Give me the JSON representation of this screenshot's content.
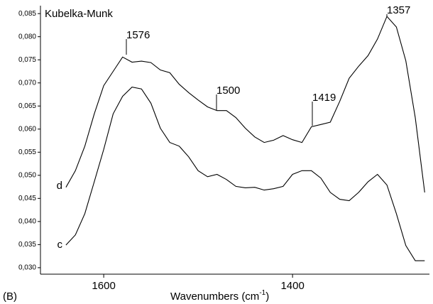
{
  "chart_data": {
    "type": "line",
    "panel_label": "(B)",
    "y_label": "Kubelka-Munk",
    "x_label": {
      "text": "Wavenumbers (cm",
      "superscript": "-1",
      "suffix": ")"
    },
    "x": [
      1640,
      1630,
      1620,
      1610,
      1600,
      1590,
      1580,
      1570,
      1560,
      1550,
      1540,
      1530,
      1520,
      1510,
      1500,
      1490,
      1480,
      1470,
      1460,
      1450,
      1440,
      1430,
      1420,
      1410,
      1400,
      1390,
      1380,
      1370,
      1360,
      1350,
      1340,
      1330,
      1320,
      1310,
      1300,
      1290,
      1280,
      1270,
      1260
    ],
    "series": [
      {
        "name": "d",
        "color": "#000000",
        "values": [
          0.0474,
          0.051,
          0.0563,
          0.0633,
          0.0694,
          0.0725,
          0.0756,
          0.0745,
          0.0747,
          0.0744,
          0.0728,
          0.0722,
          0.0697,
          0.0679,
          0.0663,
          0.0648,
          0.064,
          0.064,
          0.0625,
          0.0602,
          0.0583,
          0.0571,
          0.0576,
          0.0586,
          0.0577,
          0.0571,
          0.0605,
          0.061,
          0.0615,
          0.066,
          0.071,
          0.0736,
          0.0759,
          0.0795,
          0.0844,
          0.0821,
          0.0748,
          0.0625,
          0.0463
        ]
      },
      {
        "name": "c",
        "color": "#000000",
        "values": [
          0.0349,
          0.0371,
          0.0417,
          0.0486,
          0.0556,
          0.0633,
          0.0671,
          0.0691,
          0.0687,
          0.0656,
          0.0602,
          0.0571,
          0.0563,
          0.054,
          0.051,
          0.0497,
          0.0502,
          0.0491,
          0.0476,
          0.0473,
          0.0474,
          0.0468,
          0.0471,
          0.0476,
          0.0502,
          0.051,
          0.051,
          0.0494,
          0.0463,
          0.0448,
          0.0445,
          0.0463,
          0.0486,
          0.0502,
          0.0479,
          0.0417,
          0.0348,
          0.0315,
          0.0315
        ]
      }
    ],
    "annotations": [
      {
        "label": "1576"
      },
      {
        "label": "1500"
      },
      {
        "label": "1419"
      },
      {
        "label": "1357"
      }
    ],
    "xlim": [
      1667,
      1255
    ],
    "xticks": [
      1600,
      1400
    ],
    "ylim": [
      0.0286,
      0.0861
    ],
    "yticks": [
      {
        "value": 0.03,
        "label": "0,030"
      },
      {
        "value": 0.035,
        "label": "0,035"
      },
      {
        "value": 0.04,
        "label": "0,040"
      },
      {
        "value": 0.045,
        "label": "0,045"
      },
      {
        "value": 0.05,
        "label": "0,050"
      },
      {
        "value": 0.055,
        "label": "0,055"
      },
      {
        "value": 0.06,
        "label": "0,060"
      },
      {
        "value": 0.065,
        "label": "0,065"
      },
      {
        "value": 0.07,
        "label": "0,070"
      },
      {
        "value": 0.075,
        "label": "0,075"
      },
      {
        "value": 0.08,
        "label": "0,080"
      },
      {
        "value": 0.085,
        "label": "0,085"
      }
    ],
    "grid": false
  }
}
